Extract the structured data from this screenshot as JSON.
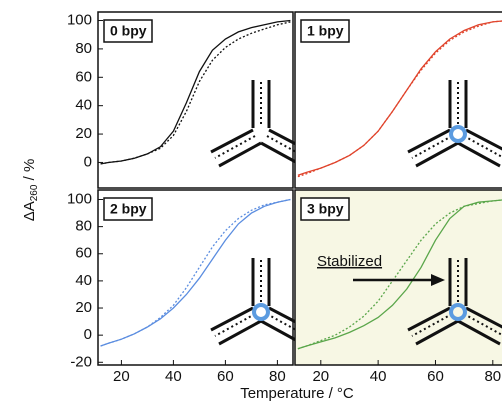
{
  "ylabel": {
    "main": "ΔA",
    "sub": "260",
    "rest": " / %"
  },
  "xlabel": "Temperature / °C",
  "chart_data": [
    {
      "type": "line",
      "title": "0 bpy",
      "x": [
        12,
        15,
        20,
        25,
        30,
        35,
        40,
        45,
        50,
        55,
        60,
        65,
        70,
        75,
        80,
        85
      ],
      "series": [
        {
          "color": "#111111",
          "linestyle": "solid",
          "values": [
            -1,
            0,
            1,
            3,
            6,
            11,
            22,
            42,
            64,
            79,
            87,
            92,
            95,
            97,
            99,
            100
          ]
        },
        {
          "color": "#111111",
          "linestyle": "dashed",
          "values": [
            -1,
            0,
            1,
            3,
            6,
            10,
            19,
            36,
            57,
            72,
            81,
            87,
            91,
            94,
            97,
            99
          ]
        }
      ],
      "xlim": [
        11,
        86
      ],
      "ylim": [
        -18,
        106
      ],
      "yticks": [
        0,
        20,
        40,
        60,
        80,
        100
      ],
      "background": "#ffffff"
    },
    {
      "type": "line",
      "title": "1 bpy",
      "x": [
        12,
        15,
        20,
        25,
        30,
        35,
        40,
        45,
        50,
        55,
        60,
        65,
        70,
        75,
        80,
        85
      ],
      "series": [
        {
          "color": "#e0442c",
          "linestyle": "solid",
          "values": [
            -9,
            -7,
            -4,
            0,
            5,
            12,
            22,
            36,
            51,
            66,
            78,
            87,
            93,
            97,
            99,
            100
          ]
        },
        {
          "color": "#e0442c",
          "linestyle": "dashed",
          "values": [
            -10,
            -8,
            -4,
            0,
            5,
            12,
            22,
            36,
            51,
            65,
            77,
            86,
            92,
            96,
            99,
            100
          ]
        }
      ],
      "xlim": [
        11,
        86
      ],
      "ylim": [
        -18,
        106
      ],
      "background": "#ffffff"
    },
    {
      "type": "line",
      "title": "2 bpy",
      "x": [
        12,
        15,
        20,
        25,
        30,
        35,
        40,
        45,
        50,
        55,
        60,
        65,
        70,
        75,
        80,
        85
      ],
      "series": [
        {
          "color": "#5b8de0",
          "linestyle": "solid",
          "values": [
            -8,
            -6,
            -3,
            1,
            6,
            12,
            20,
            30,
            42,
            56,
            70,
            82,
            90,
            95,
            98,
            100
          ]
        },
        {
          "color": "#5b8de0",
          "linestyle": "dashed",
          "values": [
            -8,
            -6,
            -3,
            1,
            6,
            13,
            22,
            35,
            50,
            65,
            77,
            86,
            92,
            96,
            98,
            100
          ]
        }
      ],
      "xlim": [
        11,
        86
      ],
      "ylim": [
        -22,
        107
      ],
      "yticks": [
        -20,
        0,
        20,
        40,
        60,
        80,
        100
      ],
      "xticks": [
        20,
        40,
        60,
        80
      ],
      "background": "#ffffff"
    },
    {
      "type": "line",
      "title": "3 bpy",
      "annotation": "Stabilized",
      "x": [
        12,
        15,
        20,
        25,
        30,
        35,
        40,
        45,
        50,
        55,
        60,
        65,
        70,
        75,
        80,
        85
      ],
      "series": [
        {
          "color": "#5aa64a",
          "linestyle": "solid",
          "values": [
            -10,
            -8,
            -5,
            -2,
            2,
            7,
            13,
            22,
            34,
            50,
            70,
            86,
            95,
            98,
            99,
            100
          ]
        },
        {
          "color": "#5aa64a",
          "linestyle": "dashed",
          "values": [
            -10,
            -8,
            -4,
            0,
            6,
            14,
            25,
            40,
            55,
            70,
            82,
            90,
            95,
            97,
            99,
            100
          ]
        }
      ],
      "xlim": [
        11,
        86
      ],
      "ylim": [
        -22,
        107
      ],
      "xticks": [
        20,
        40,
        60,
        80
      ],
      "background": "#f7f7e4"
    }
  ]
}
